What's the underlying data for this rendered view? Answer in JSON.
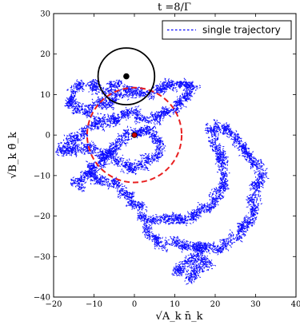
{
  "chart_data": {
    "type": "scatter",
    "title": "t =8/Γ",
    "xlabel": "√A_k n̄_k",
    "ylabel": "√B_k θ̄_k",
    "xlim": [
      -20,
      40
    ],
    "ylim": [
      -40,
      30
    ],
    "xticks": [
      -20,
      -10,
      0,
      10,
      20,
      30,
      40
    ],
    "yticks": [
      -40,
      -30,
      -20,
      -10,
      0,
      10,
      20,
      30
    ],
    "xtick_labels": [
      "−20",
      "−10",
      "0",
      "10",
      "20",
      "30",
      "40"
    ],
    "ytick_labels": [
      "−40",
      "−30",
      "−20",
      "−10",
      "0",
      "10",
      "20",
      "30"
    ],
    "grid": false,
    "legend": {
      "placement": "top-right",
      "entries": [
        "single trajectory"
      ]
    },
    "series": [
      {
        "name": "single trajectory",
        "kind": "dashed-trajectory",
        "color": "#0000ff",
        "seed": 7,
        "random_walk_step": 0.9,
        "path": [
          [
            -3,
            12
          ],
          [
            -8,
            11
          ],
          [
            -14,
            12
          ],
          [
            -16,
            8
          ],
          [
            -11,
            6
          ],
          [
            -6,
            8
          ],
          [
            -2,
            11
          ],
          [
            4,
            10
          ],
          [
            8,
            13
          ],
          [
            12,
            13
          ],
          [
            15,
            12
          ],
          [
            12,
            9
          ],
          [
            7,
            5
          ],
          [
            3,
            4
          ],
          [
            -1,
            6
          ],
          [
            -6,
            3
          ],
          [
            -12,
            2
          ],
          [
            -16,
            -2
          ],
          [
            -18,
            -4
          ],
          [
            -15,
            -3
          ],
          [
            -10,
            -3
          ],
          [
            -5,
            -6
          ],
          [
            0,
            -8
          ],
          [
            4,
            -6
          ],
          [
            6,
            -3
          ],
          [
            4,
            1
          ],
          [
            -2,
            0
          ],
          [
            -7,
            -5
          ],
          [
            -12,
            -9
          ],
          [
            -14,
            -12
          ],
          [
            -10,
            -10
          ],
          [
            -5,
            -12
          ],
          [
            -1,
            -16
          ],
          [
            2,
            -20
          ],
          [
            6,
            -21
          ],
          [
            10,
            -20
          ],
          [
            14,
            -21
          ],
          [
            18,
            -18
          ],
          [
            21,
            -15
          ],
          [
            23,
            -10
          ],
          [
            21,
            -5
          ],
          [
            19,
            1
          ],
          [
            23,
            2
          ],
          [
            26,
            -2
          ],
          [
            29,
            -6
          ],
          [
            31,
            -9
          ],
          [
            30,
            -14
          ],
          [
            29,
            -20
          ],
          [
            27,
            -24
          ],
          [
            23,
            -26
          ],
          [
            20,
            -28
          ],
          [
            16,
            -29
          ],
          [
            13,
            -31
          ],
          [
            11,
            -34
          ],
          [
            14,
            -35
          ],
          [
            18,
            -32
          ],
          [
            16,
            -28
          ],
          [
            10,
            -27
          ],
          [
            5,
            -26
          ],
          [
            3,
            -23
          ]
        ]
      },
      {
        "name": "",
        "kind": "mean-point",
        "color": "#cc0000",
        "x": 0,
        "y": 0
      },
      {
        "name": "",
        "kind": "marker-point",
        "color": "#000000",
        "x": -2,
        "y": 14.5
      }
    ],
    "circles": [
      {
        "kind": "spread-circle",
        "cx": 0,
        "cy": 0,
        "r": 11.7,
        "color": "#e82020",
        "dashed": true
      },
      {
        "kind": "marker-circle",
        "cx": -2,
        "cy": 14.5,
        "r": 7,
        "color": "#000000",
        "dashed": false
      }
    ]
  }
}
